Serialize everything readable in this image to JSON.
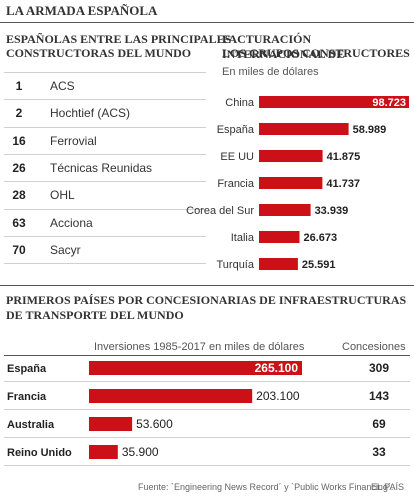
{
  "main_title": "LA ARMADA ESPAÑOLA",
  "ranking": {
    "title_line1": "ESPAÑOLAS ENTRE LAS PRINCIPALES",
    "title_line2": "CONSTRUCTORAS DEL MUNDO",
    "rows": [
      {
        "rank": "1",
        "name": "ACS"
      },
      {
        "rank": "2",
        "name": "Hochtief (ACS)"
      },
      {
        "rank": "16",
        "name": "Ferrovial"
      },
      {
        "rank": "26",
        "name": "Técnicas Reunidas"
      },
      {
        "rank": "28",
        "name": "OHL"
      },
      {
        "rank": "63",
        "name": "Acciona"
      },
      {
        "rank": "70",
        "name": "Sacyr"
      }
    ]
  },
  "facturacion": {
    "title_line1": "FACTURACIÓN INTERNACIONAL DE",
    "title_line2": "LOS GRUPOS CONSTRUCTORES",
    "unit": "En miles de dólares"
  },
  "concesionarias": {
    "title_line1": "PRIMEROS PAÍSES POR CONCESIONARIAS  DE INFRAESTRUCTURAS",
    "title_line2": "DE TRANSPORTE DEL MUNDO",
    "col_investment": "Inversiones 1985-2017 en miles de dólares",
    "col_concessions": "Concesiones"
  },
  "source": "Fuente: `Engineering News Record´ y `Public Works Financing´.",
  "publisher": "EL PAÍS",
  "colors": {
    "bar": "#cc1018",
    "text": "#222222",
    "rule": "#cccccc"
  },
  "chart_data": [
    {
      "type": "bar",
      "orientation": "horizontal",
      "title": "FACTURACIÓN INTERNACIONAL DE LOS GRUPOS CONSTRUCTORES",
      "unit": "En miles de dólares",
      "categories": [
        "China",
        "España",
        "EE UU",
        "Francia",
        "Corea del Sur",
        "Italia",
        "Turquía"
      ],
      "values": [
        98723,
        58989,
        41875,
        41737,
        33939,
        26673,
        25591
      ],
      "value_labels": [
        "98.723",
        "58.989",
        "41.875",
        "41.737",
        "33.939",
        "26.673",
        "25.591"
      ],
      "xlim": [
        0,
        98723
      ]
    },
    {
      "type": "bar",
      "orientation": "horizontal",
      "title": "PRIMEROS PAÍSES POR CONCESIONARIAS DE INFRAESTRUCTURAS DE TRANSPORTE DEL MUNDO",
      "categories": [
        "España",
        "Francia",
        "Australia",
        "Reino Unido"
      ],
      "values": [
        265100,
        203100,
        53600,
        35900
      ],
      "value_labels": [
        "265.100",
        "203.100",
        "53.600",
        "35.900"
      ],
      "concessions": [
        "309",
        "143",
        "69",
        "33"
      ],
      "xlim": [
        0,
        265100
      ]
    }
  ]
}
